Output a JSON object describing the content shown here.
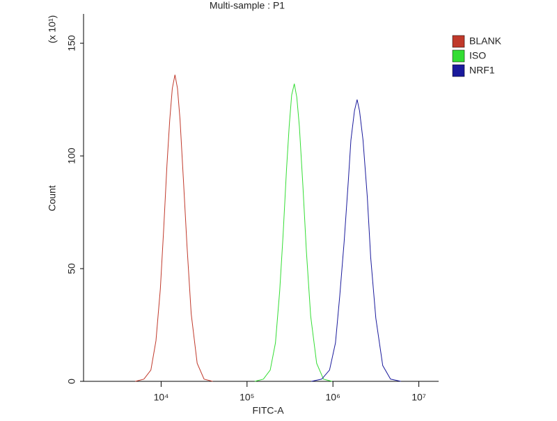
{
  "chart_data": {
    "type": "line",
    "title": "Multi-sample : P1",
    "x_label": "FITC-A",
    "y_label": "Count",
    "y_unit_label": "(x 10¹)",
    "log_x": true,
    "xlim": [
      1250,
      17000000
    ],
    "xticks": [
      {
        "value": 10000,
        "label": "10⁴"
      },
      {
        "value": 100000,
        "label": "10⁵"
      },
      {
        "value": 1000000,
        "label": "10⁶"
      },
      {
        "value": 10000000,
        "label": "10⁷"
      }
    ],
    "ylim": [
      0,
      163
    ],
    "yticks": [
      0,
      50,
      100,
      150
    ],
    "legend": "top-right",
    "series": [
      {
        "name": "BLANK",
        "color": "#c0392b",
        "x": [
          5000,
          6300,
          7600,
          8700,
          9800,
          10700,
          11700,
          12600,
          13500,
          14500,
          15500,
          16600,
          18200,
          20000,
          22400,
          26300,
          31600,
          39800
        ],
        "values": [
          0,
          1,
          5,
          18,
          41,
          67,
          96,
          116,
          130,
          136,
          130,
          116,
          89,
          60,
          30,
          8,
          1,
          0
        ]
      },
      {
        "name": "ISO",
        "color": "#33dd33",
        "x": [
          123000,
          155000,
          186000,
          214000,
          240000,
          263000,
          288000,
          309000,
          331000,
          355000,
          380000,
          407000,
          447000,
          490000,
          550000,
          646000,
          776000,
          977000
        ],
        "values": [
          0,
          1,
          5,
          17,
          40,
          65,
          94,
          113,
          127,
          132,
          126,
          113,
          87,
          58,
          29,
          8,
          1,
          0
        ]
      },
      {
        "name": "NRF1",
        "color": "#1a1a9c",
        "x": [
          562000,
          741000,
          912000,
          1070000,
          1200000,
          1350000,
          1510000,
          1620000,
          1780000,
          1910000,
          2040000,
          2240000,
          2510000,
          2750000,
          3160000,
          3800000,
          4680000,
          6170000
        ],
        "values": [
          0,
          1,
          5,
          17,
          38,
          62,
          89,
          107,
          120,
          125,
          120,
          107,
          82,
          55,
          28,
          7,
          1,
          0
        ]
      }
    ]
  }
}
